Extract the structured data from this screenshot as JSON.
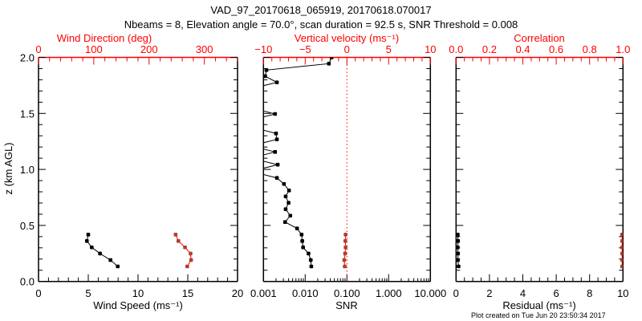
{
  "title": "VAD_97_20170618_065919, 20170618.070017",
  "subtitle": "Nbeams = 8, Elevation angle = 70.0°, scan duration = 92.5 s, SNR Threshold = 0.008",
  "footer": "Plot created on Tue Jun 20 23:50:34 2017",
  "colors": {
    "axis_top": "#ff0000",
    "series_black": "#000000",
    "series_red_line": "#ff0000",
    "series_red_marker": "#b0402a"
  },
  "chart_data": [
    {
      "type": "line",
      "panel": "wind",
      "ylabel": "z (km AGL)",
      "ylim": [
        0,
        2
      ],
      "yticks": [
        "0.0",
        "0.5",
        "1.0",
        "1.5",
        "2.0"
      ],
      "xlabel": "Wind Speed (ms⁻¹)",
      "xscale": "linear",
      "xlim": [
        0,
        20
      ],
      "xticks": [
        "0",
        "5",
        "10",
        "15",
        "20"
      ],
      "top_xlabel": "Wind Direction (deg)",
      "top_xlim": [
        0,
        360
      ],
      "top_xticks": [
        "0",
        "100",
        "200",
        "300"
      ],
      "series": [
        {
          "name": "Wind speed",
          "axis": "bottom",
          "z": [
            0.134,
            0.191,
            0.249,
            0.304,
            0.361,
            0.418
          ],
          "values": [
            7.96,
            7.23,
            6.18,
            5.35,
            4.86,
            5.0
          ]
        },
        {
          "name": "Wind direction",
          "axis": "top",
          "z": [
            0.134,
            0.191,
            0.249,
            0.304,
            0.361,
            0.418
          ],
          "values": [
            269,
            276,
            275,
            265,
            253,
            248
          ]
        }
      ]
    },
    {
      "type": "line",
      "panel": "snr",
      "ylim": [
        0,
        2
      ],
      "xlabel": "SNR",
      "xscale": "log",
      "xlim": [
        0.001,
        10
      ],
      "xticks": [
        "0.001",
        "0.010",
        "0.100",
        "1.000",
        "10.000"
      ],
      "top_xlabel": "Vertical velocity (ms⁻¹)",
      "top_xlim": [
        -10,
        10
      ],
      "top_xticks": [
        "−10",
        "−5",
        "0",
        "5",
        "10"
      ],
      "zero_line": 0,
      "series": [
        {
          "name": "SNR",
          "axis": "bottom",
          "z": [
            0.134,
            0.191,
            0.249,
            0.304,
            0.361,
            0.418,
            0.473,
            0.53,
            0.587,
            0.645,
            0.702,
            0.759,
            0.812,
            0.87,
            0.924,
            0.983,
            1.042,
            1.1,
            1.156,
            1.21,
            1.268,
            1.321,
            1.38,
            1.44,
            1.495,
            1.55,
            1.61,
            1.67,
            1.72,
            1.777,
            1.832,
            1.887,
            1.944,
            2.0
          ],
          "values": [
            0.014,
            0.0136,
            0.012,
            0.0089,
            0.0085,
            0.0082,
            0.0064,
            0.0033,
            0.0044,
            0.0034,
            0.004,
            0.0034,
            0.0041,
            0.0031,
            0.0021,
            0.0005,
            0.0022,
            0.0005,
            0.0019,
            0.0005,
            0.0021,
            0.002,
            0.0005,
            0.0005,
            0.0019,
            0.0005,
            0.0005,
            0.0005,
            0.0005,
            0.0021,
            0.0011,
            0.00118,
            0.037,
            0.043
          ]
        },
        {
          "name": "Vertical velocity",
          "axis": "top",
          "z": [
            0.134,
            0.191,
            0.249,
            0.304,
            0.361,
            0.418
          ],
          "values": [
            -0.26,
            -0.32,
            -0.22,
            -0.16,
            -0.19,
            -0.16
          ]
        }
      ]
    },
    {
      "type": "line",
      "panel": "residual",
      "ylim": [
        0,
        2
      ],
      "xlabel": "Residual (ms⁻¹)",
      "xscale": "linear",
      "xlim": [
        0,
        10
      ],
      "xticks": [
        "0",
        "2",
        "4",
        "6",
        "8",
        "10"
      ],
      "top_xlabel": "Correlation",
      "top_xlim": [
        0,
        1
      ],
      "top_xticks": [
        "0.0",
        "0.2",
        "0.4",
        "0.6",
        "0.8",
        "1.0"
      ],
      "series": [
        {
          "name": "Residual",
          "axis": "bottom",
          "z": [
            0.134,
            0.191,
            0.249,
            0.304,
            0.361,
            0.418
          ],
          "values": [
            0.15,
            0.11,
            0.12,
            0.1,
            0.12,
            0.1
          ]
        },
        {
          "name": "Correlation",
          "axis": "top",
          "z": [
            0.134,
            0.191,
            0.249,
            0.304,
            0.361,
            0.418
          ],
          "values": [
            0.995,
            0.995,
            0.995,
            0.995,
            0.995,
            0.995
          ]
        }
      ]
    }
  ]
}
